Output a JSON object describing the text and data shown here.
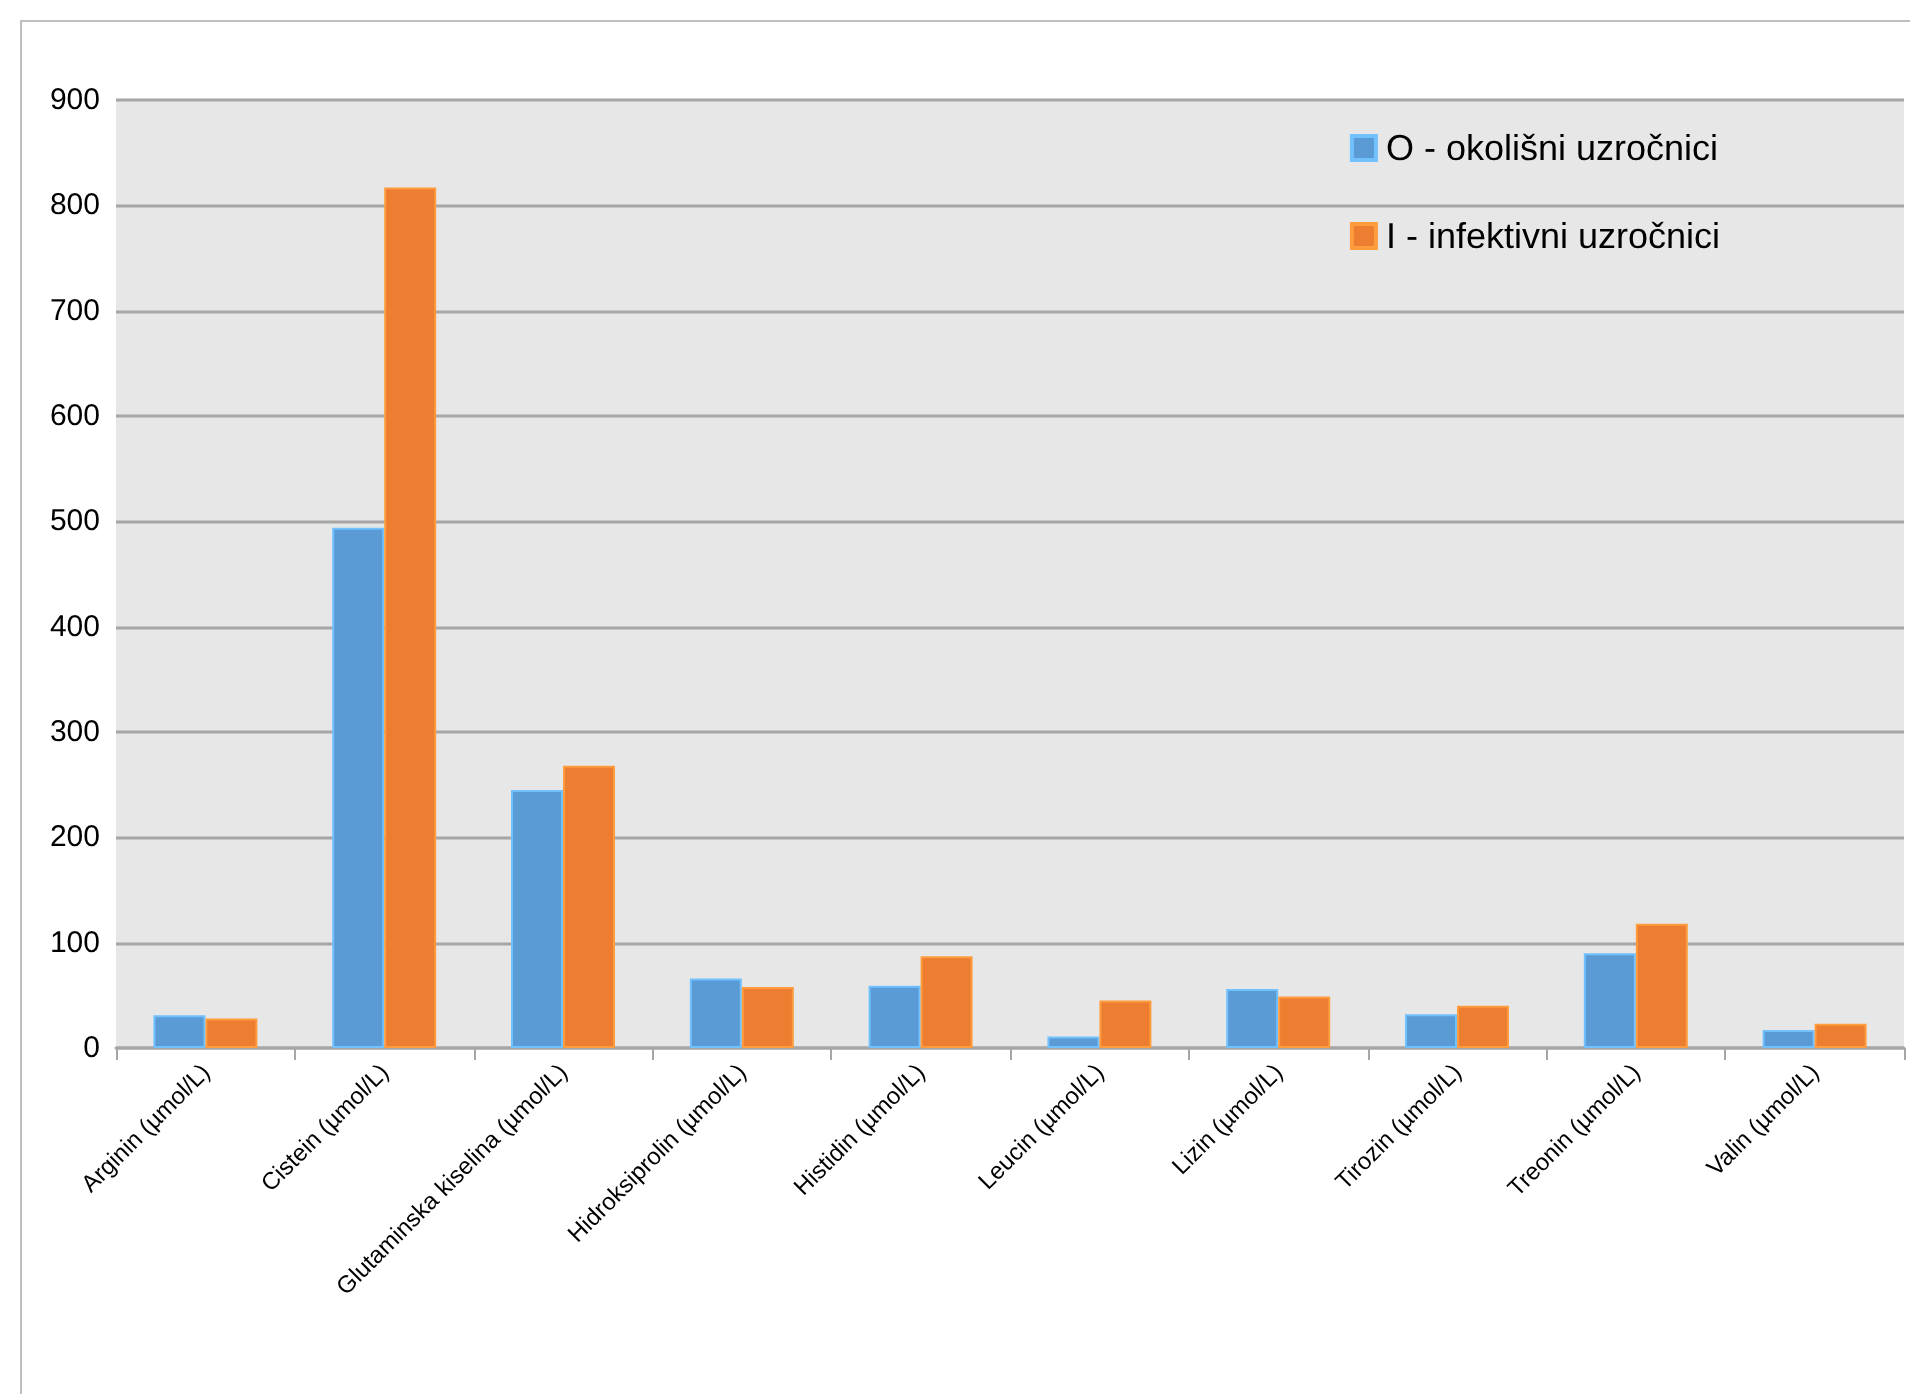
{
  "chart_data": {
    "type": "bar",
    "categories": [
      "Arginin (µmol/L)",
      "Cistein (µmol/L)",
      "Glutaminska kiselina (µmol/L)",
      "Hidroksiprolin (µmol/L)",
      "Histidin (µmol/L)",
      "Leucin (µmol/L)",
      "Lizin (µmol/L)",
      "Tirozin (µmol/L)",
      "Treonin (µmol/L)",
      "Valin (µmol/L)"
    ],
    "series": [
      {
        "name": "O - okolišni uzročnici",
        "color": "#5b9bd5",
        "values": [
          31,
          494,
          245,
          66,
          59,
          11,
          56,
          32,
          90,
          17
        ]
      },
      {
        "name": "I - infektivni uzročnici",
        "color": "#ed7d31",
        "values": [
          28,
          817,
          268,
          58,
          87,
          45,
          49,
          40,
          118,
          23
        ]
      }
    ],
    "ylim": [
      0,
      900
    ],
    "yticks": [
      0,
      100,
      200,
      300,
      400,
      500,
      600,
      700,
      800,
      900
    ],
    "grid": "y",
    "legend": "top right"
  }
}
